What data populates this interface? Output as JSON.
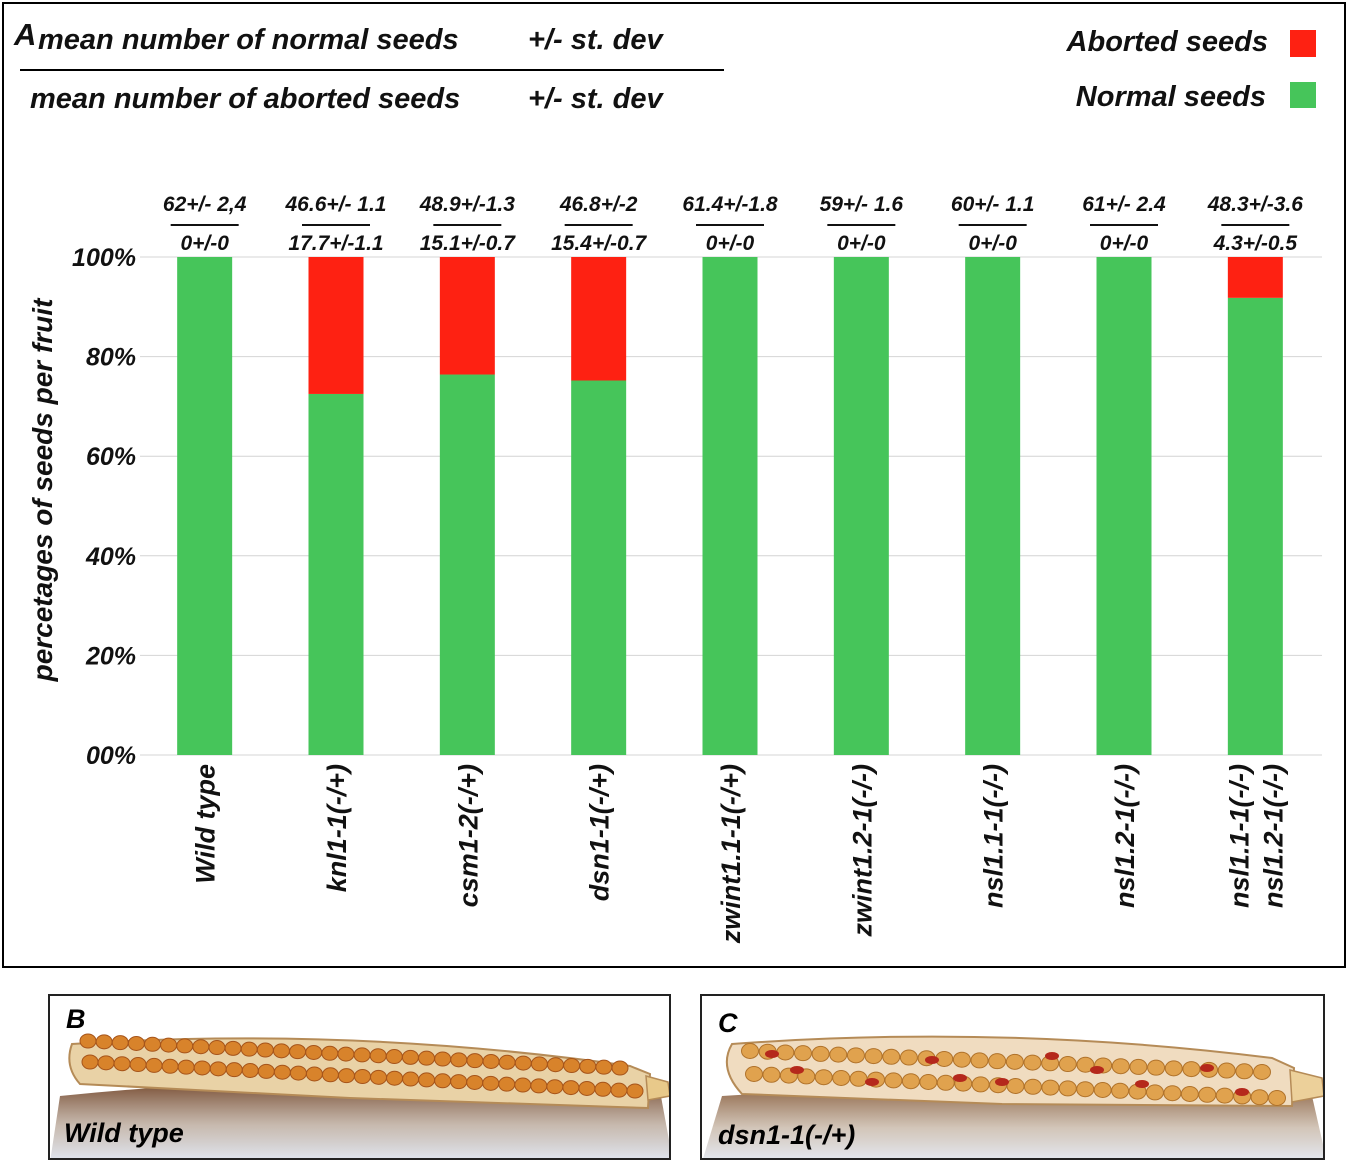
{
  "panel_a": {
    "letter": "A",
    "formula_top": "mean number of normal seeds",
    "formula_top_sd": "+/- st. dev",
    "formula_bottom": "mean number of aborted seeds",
    "formula_bottom_sd": "+/- st. dev"
  },
  "legend": {
    "items": [
      {
        "label": "Aborted seeds",
        "color": "#fe2112"
      },
      {
        "label": "Normal seeds",
        "color": "#46c55a"
      }
    ]
  },
  "chart_data": {
    "type": "bar",
    "stacked": true,
    "percent_stacked": true,
    "ylabel": "percetages of seeds per fruit",
    "ylim": [
      0,
      100
    ],
    "yticks": [
      "00%",
      "20%",
      "40%",
      "60%",
      "80%",
      "100%"
    ],
    "grid": true,
    "legend_position": "top-right",
    "categories": [
      [
        "Wild type"
      ],
      [
        "knl1-1(-/+)"
      ],
      [
        "csm1-2(-/+)"
      ],
      [
        "dsn1-1(-/+)"
      ],
      [
        "zwint1.1-1(-/+)"
      ],
      [
        "zwint1.2-1(-/-)"
      ],
      [
        "nsl1.1-1(-/-)"
      ],
      [
        "nsl1.2-1(-/-)"
      ],
      [
        "nsl1.1-1(-/-)",
        "nsl1.2-1(-/-)"
      ]
    ],
    "series": [
      {
        "name": "Normal seeds",
        "color": "#46c55a",
        "values": [
          100,
          72.5,
          76.4,
          75.2,
          100,
          100,
          100,
          100,
          91.8
        ]
      },
      {
        "name": "Aborted seeds",
        "color": "#fe2112",
        "values": [
          0,
          27.5,
          23.6,
          24.8,
          0,
          0,
          0,
          0,
          8.2
        ]
      }
    ],
    "annotations": [
      {
        "top": "62+/- 2,4",
        "bottom": "0+/-0"
      },
      {
        "top": "46.6+/- 1.1",
        "bottom": "17.7+/-1.1"
      },
      {
        "top": "48.9+/-1.3",
        "bottom": "15.1+/-0.7"
      },
      {
        "top": "46.8+/-2",
        "bottom": "15.4+/-0.7"
      },
      {
        "top": "61.4+/-1.8",
        "bottom": "0+/-0"
      },
      {
        "top": "59+/- 1.6",
        "bottom": "0+/-0"
      },
      {
        "top": "60+/- 1.1",
        "bottom": "0+/-0"
      },
      {
        "top": "61+/- 2.4",
        "bottom": "0+/-0"
      },
      {
        "top": "48.3+/-3.6",
        "bottom": "4.3+/-0.5"
      }
    ]
  },
  "panel_b": {
    "letter": "B",
    "caption": "Wild type"
  },
  "panel_c": {
    "letter": "C",
    "caption": "dsn1-1(-/+)"
  }
}
